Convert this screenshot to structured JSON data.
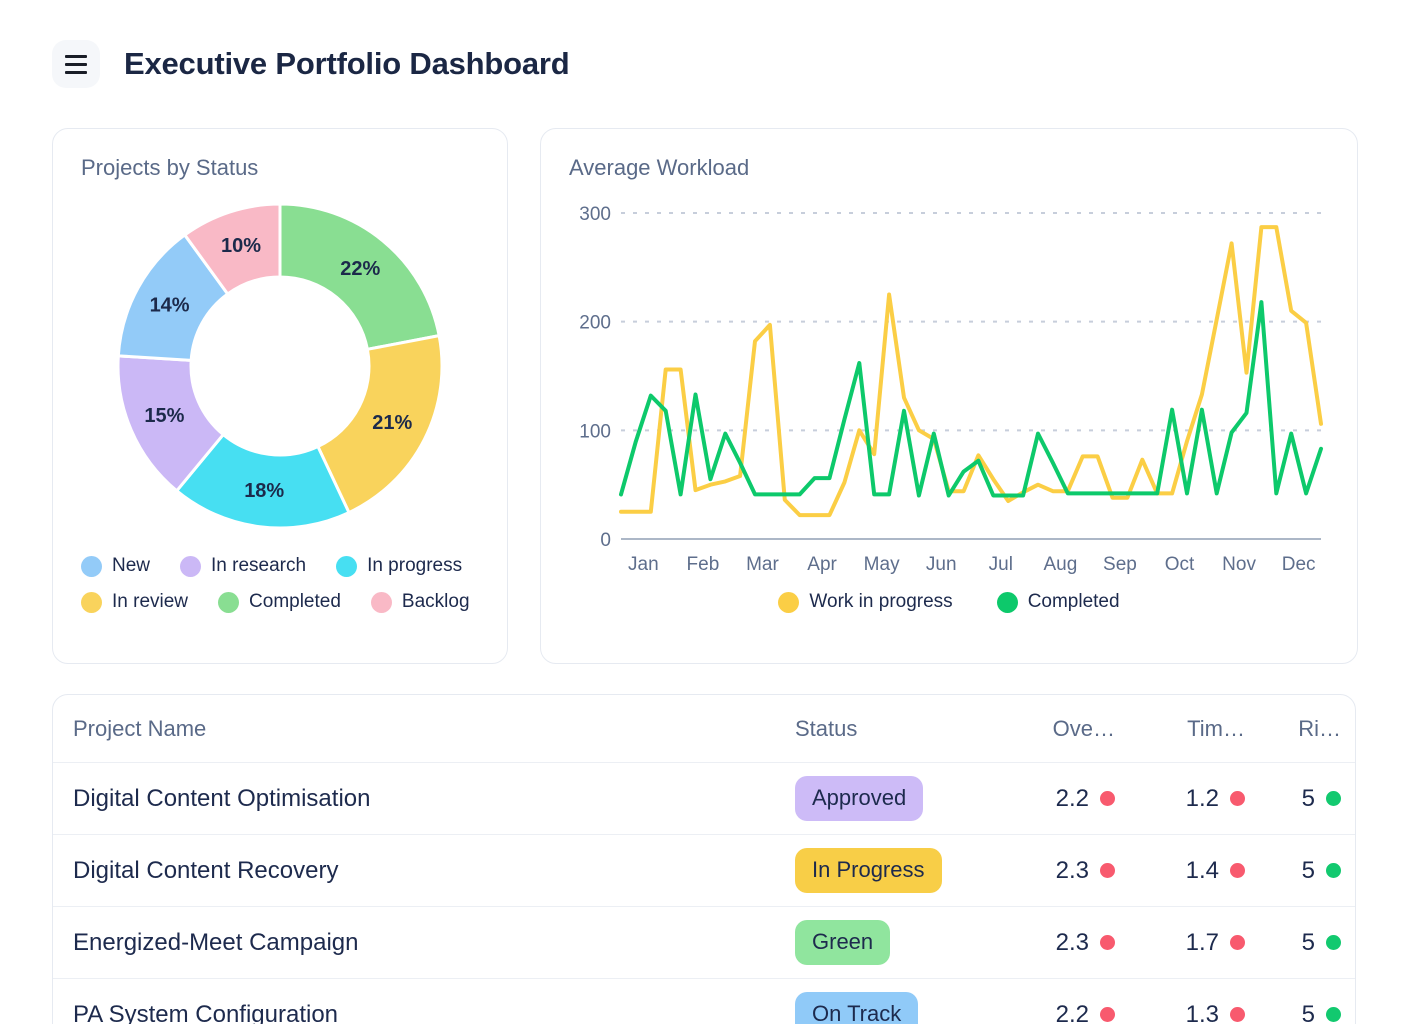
{
  "header": {
    "title": "Executive Portfolio Dashboard"
  },
  "status_chart": {
    "title": "Projects by Status",
    "type": "donut",
    "slices": [
      {
        "label": "Completed",
        "pct": 22,
        "color": "#89DE92"
      },
      {
        "label": "In review",
        "pct": 21,
        "color": "#F9D35C"
      },
      {
        "label": "In progress",
        "pct": 18,
        "color": "#47DFF2"
      },
      {
        "label": "In research",
        "pct": 15,
        "color": "#CBB8F6"
      },
      {
        "label": "New",
        "pct": 14,
        "color": "#93CBF8"
      },
      {
        "label": "Backlog",
        "pct": 10,
        "color": "#F9B9C6"
      }
    ],
    "legend": [
      {
        "label": "New",
        "color": "#93CBF8"
      },
      {
        "label": "In research",
        "color": "#CBB8F6"
      },
      {
        "label": "In progress",
        "color": "#47DFF2"
      },
      {
        "label": "In review",
        "color": "#F9D35C"
      },
      {
        "label": "Completed",
        "color": "#89DE92"
      },
      {
        "label": "Backlog",
        "color": "#F9B9C6"
      }
    ]
  },
  "workload_chart": {
    "title": "Average Workload",
    "type": "line",
    "y_ticks": [
      0,
      100,
      200,
      300
    ],
    "y_max": 300,
    "months": [
      "Jan",
      "Feb",
      "Mar",
      "Apr",
      "May",
      "Jun",
      "Jul",
      "Aug",
      "Sep",
      "Oct",
      "Nov",
      "Dec"
    ],
    "series": [
      {
        "name": "Work in progress",
        "color": "#FBCE45",
        "values": [
          25,
          25,
          25,
          156,
          156,
          45,
          50,
          53,
          58,
          182,
          197,
          36,
          22,
          22,
          22,
          52,
          100,
          78,
          225,
          130,
          100,
          92,
          44,
          44,
          77,
          55,
          35,
          43,
          50,
          44,
          44,
          76,
          76,
          38,
          38,
          73,
          42,
          42,
          90,
          133,
          202,
          272,
          153,
          287,
          287,
          210,
          199,
          106
        ]
      },
      {
        "name": "Completed",
        "color": "#0DC96B",
        "values": [
          41,
          90,
          132,
          118,
          41,
          133,
          55,
          97,
          70,
          41,
          41,
          41,
          41,
          56,
          56,
          110,
          162,
          41,
          41,
          118,
          40,
          97,
          40,
          62,
          72,
          40,
          40,
          40,
          97,
          70,
          42,
          42,
          42,
          42,
          42,
          42,
          42,
          119,
          42,
          119,
          42,
          98,
          116,
          218,
          42,
          97,
          42,
          83
        ]
      }
    ]
  },
  "table": {
    "columns": [
      "Project Name",
      "Status",
      "Ove…",
      "Tim…",
      "Ri…"
    ],
    "rows": [
      {
        "name": "Digital Content Optimisation",
        "status": {
          "label": "Approved",
          "bg": "#CDBBF7"
        },
        "metrics": [
          {
            "value": "2.2",
            "dot": "#F85A6E"
          },
          {
            "value": "1.2",
            "dot": "#F85A6E"
          },
          {
            "value": "5",
            "dot": "#12C96F"
          }
        ]
      },
      {
        "name": "Digital Content Recovery",
        "status": {
          "label": "In Progress",
          "bg": "#F8CE47"
        },
        "metrics": [
          {
            "value": "2.3",
            "dot": "#F85A6E"
          },
          {
            "value": "1.4",
            "dot": "#F85A6E"
          },
          {
            "value": "5",
            "dot": "#12C96F"
          }
        ]
      },
      {
        "name": "Energized-Meet Campaign",
        "status": {
          "label": "Green",
          "bg": "#90E59E"
        },
        "metrics": [
          {
            "value": "2.3",
            "dot": "#F85A6E"
          },
          {
            "value": "1.7",
            "dot": "#F85A6E"
          },
          {
            "value": "5",
            "dot": "#12C96F"
          }
        ]
      },
      {
        "name": "PA System Configuration",
        "status": {
          "label": "On Track",
          "bg": "#90CAF8"
        },
        "metrics": [
          {
            "value": "2.2",
            "dot": "#F85A6E"
          },
          {
            "value": "1.3",
            "dot": "#F85A6E"
          },
          {
            "value": "5",
            "dot": "#12C96F"
          }
        ]
      }
    ]
  }
}
